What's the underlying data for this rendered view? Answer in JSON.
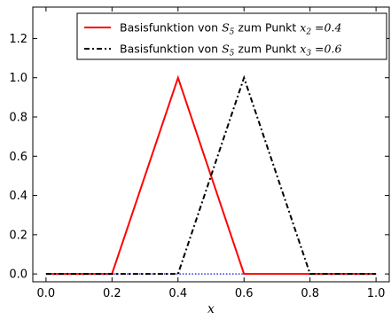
{
  "chart_data": {
    "type": "line",
    "xlabel": "x",
    "ylabel": "",
    "xlim": [
      -0.04,
      1.04
    ],
    "ylim": [
      -0.04,
      1.36
    ],
    "xticks": [
      0.0,
      0.2,
      0.4,
      0.6,
      0.8,
      1.0
    ],
    "yticks": [
      0.0,
      0.2,
      0.4,
      0.6,
      0.8,
      1.0,
      1.2
    ],
    "xtick_labels": [
      "0.0",
      "0.2",
      "0.4",
      "0.6",
      "0.8",
      "1.0"
    ],
    "ytick_labels": [
      "0.0",
      "0.2",
      "0.4",
      "0.6",
      "0.8",
      "1.0",
      "1.2"
    ],
    "grid": false,
    "legend_position": "top-right",
    "baseline": {
      "y": 0,
      "x_range": [
        0.0,
        1.0
      ],
      "color": "#0000cc",
      "style": "dotted"
    },
    "series": [
      {
        "name": "Basisfunktion von S5 zum Punkt x2 = 0.4",
        "legend_prefix": "Basisfunktion von ",
        "legend_math1": "S",
        "legend_math1_sub": "5",
        "legend_mid": " zum Punkt ",
        "legend_math2": "x",
        "legend_math2_sub": "2",
        "legend_suffix": " =0.4",
        "color": "#ff0000",
        "style": "solid",
        "x": [
          0.0,
          0.2,
          0.4,
          0.6,
          0.8,
          1.0
        ],
        "y": [
          0.0,
          0.0,
          1.0,
          0.0,
          0.0,
          0.0
        ]
      },
      {
        "name": "Basisfunktion von S5 zum Punkt x3 = 0.6",
        "legend_prefix": "Basisfunktion von ",
        "legend_math1": "S",
        "legend_math1_sub": "5",
        "legend_mid": " zum Punkt ",
        "legend_math2": "x",
        "legend_math2_sub": "3",
        "legend_suffix": " =0.6",
        "color": "#000000",
        "style": "dashdot",
        "x": [
          0.0,
          0.2,
          0.4,
          0.6,
          0.8,
          1.0
        ],
        "y": [
          0.0,
          0.0,
          0.0,
          1.0,
          0.0,
          0.0
        ]
      }
    ]
  }
}
